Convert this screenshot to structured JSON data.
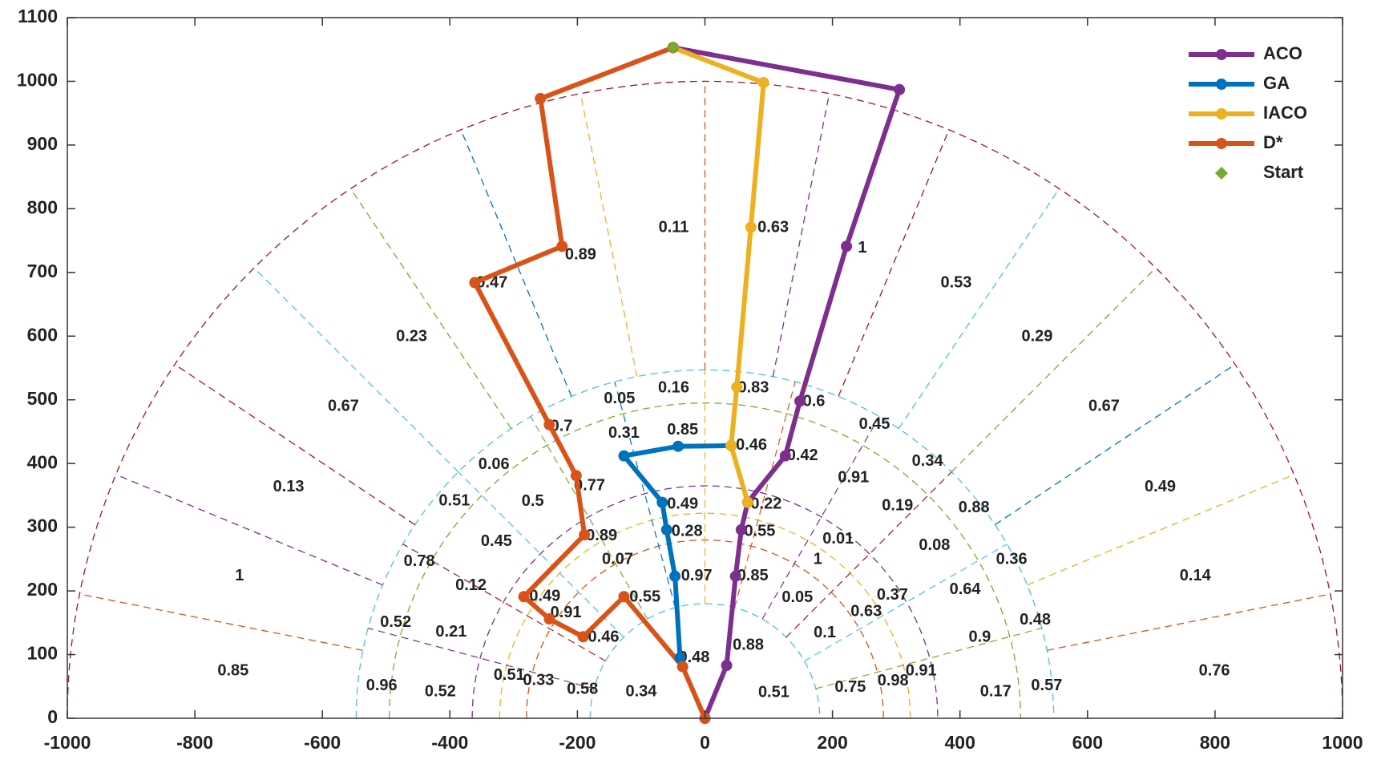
{
  "chart_data": {
    "type": "line",
    "xlim": [
      -1000,
      1000
    ],
    "xticks": [
      -1000,
      -800,
      -600,
      -400,
      -200,
      0,
      200,
      400,
      600,
      800,
      1000
    ],
    "ylim": [
      0,
      1100
    ],
    "yticks": [
      0,
      100,
      200,
      300,
      400,
      500,
      600,
      700,
      800,
      900,
      1000,
      1100
    ],
    "legend": "upper right",
    "series": [
      {
        "name": "ACO",
        "color": "#7e2f8e",
        "marker": "circle",
        "x": [
          -50,
          305,
          222,
          149,
          126,
          67,
          57,
          48,
          34,
          0
        ],
        "y": [
          1053,
          987,
          741,
          498,
          412,
          339,
          296,
          223,
          83,
          0
        ]
      },
      {
        "name": "GA",
        "color": "#0072bd",
        "marker": "circle",
        "x": [
          41,
          -42,
          -127,
          -67,
          -60,
          -47,
          -39
        ],
        "y": [
          428,
          427,
          412,
          339,
          296,
          223,
          95
        ]
      },
      {
        "name": "IACO",
        "color": "#edb120",
        "marker": "circle",
        "x": [
          -50,
          92,
          72,
          50,
          41,
          67
        ],
        "y": [
          1053,
          998,
          771,
          520,
          428,
          339
        ]
      },
      {
        "name": "D*",
        "color": "#d95319",
        "marker": "circle",
        "x": [
          -50,
          -258,
          -224,
          -361,
          -244,
          -202,
          -189,
          -284,
          -244,
          -191,
          -127,
          -35,
          0
        ],
        "y": [
          1053,
          973,
          741,
          684,
          461,
          381,
          288,
          191,
          156,
          128,
          191,
          81,
          0
        ]
      },
      {
        "name": "Start",
        "color": "#77ac30",
        "marker": "diamond",
        "x": [
          -50
        ],
        "y": [
          1053
        ]
      }
    ],
    "annotations": [
      {
        "text": "0.11",
        "x": -49,
        "y": 770
      },
      {
        "text": "0.63",
        "x": 107,
        "y": 770
      },
      {
        "text": "1",
        "x": 247,
        "y": 738
      },
      {
        "text": "0.89",
        "x": -195,
        "y": 727
      },
      {
        "text": "0.47",
        "x": -334,
        "y": 683
      },
      {
        "text": "0.53",
        "x": 394,
        "y": 683
      },
      {
        "text": "0.23",
        "x": -460,
        "y": 599
      },
      {
        "text": "0.29",
        "x": 521,
        "y": 599
      },
      {
        "text": "0.67",
        "x": -567,
        "y": 489
      },
      {
        "text": "0.67",
        "x": 626,
        "y": 489
      },
      {
        "text": "0.13",
        "x": -653,
        "y": 363
      },
      {
        "text": "0.49",
        "x": 714,
        "y": 363
      },
      {
        "text": "1",
        "x": -730,
        "y": 223
      },
      {
        "text": "0.14",
        "x": 769,
        "y": 223
      },
      {
        "text": "0.85",
        "x": -740,
        "y": 74
      },
      {
        "text": "0.76",
        "x": 799,
        "y": 74
      },
      {
        "text": "0.16",
        "x": -49,
        "y": 518
      },
      {
        "text": "0.83",
        "x": 76,
        "y": 518
      },
      {
        "text": "0.6",
        "x": 171,
        "y": 497
      },
      {
        "text": "0.05",
        "x": -134,
        "y": 501
      },
      {
        "text": "0.7",
        "x": -225,
        "y": 458
      },
      {
        "text": "0.85",
        "x": -35,
        "y": 452
      },
      {
        "text": "0.31",
        "x": -127,
        "y": 447
      },
      {
        "text": "0.46",
        "x": 73,
        "y": 428
      },
      {
        "text": "0.45",
        "x": 266,
        "y": 461
      },
      {
        "text": "0.42",
        "x": 153,
        "y": 412
      },
      {
        "text": "0.34",
        "x": 349,
        "y": 403
      },
      {
        "text": "0.06",
        "x": -331,
        "y": 398
      },
      {
        "text": "0.91",
        "x": 233,
        "y": 377
      },
      {
        "text": "0.77",
        "x": -181,
        "y": 365
      },
      {
        "text": "0.51",
        "x": -393,
        "y": 341
      },
      {
        "text": "0.5",
        "x": -270,
        "y": 340
      },
      {
        "text": "0.49",
        "x": -35,
        "y": 336
      },
      {
        "text": "0.22",
        "x": 96,
        "y": 336
      },
      {
        "text": "0.19",
        "x": 302,
        "y": 333
      },
      {
        "text": "0.88",
        "x": 422,
        "y": 330
      },
      {
        "text": "0.89",
        "x": -162,
        "y": 286
      },
      {
        "text": "0.28",
        "x": -28,
        "y": 293
      },
      {
        "text": "0.55",
        "x": 86,
        "y": 293
      },
      {
        "text": "0.01",
        "x": 209,
        "y": 281
      },
      {
        "text": "0.45",
        "x": -327,
        "y": 277
      },
      {
        "text": "0.08",
        "x": 360,
        "y": 271
      },
      {
        "text": "0.78",
        "x": -448,
        "y": 246
      },
      {
        "text": "0.07",
        "x": -137,
        "y": 249
      },
      {
        "text": "1",
        "x": 177,
        "y": 249
      },
      {
        "text": "0.36",
        "x": 481,
        "y": 249
      },
      {
        "text": "0.97",
        "x": -13,
        "y": 223
      },
      {
        "text": "0.85",
        "x": 75,
        "y": 223
      },
      {
        "text": "0.12",
        "x": -367,
        "y": 208
      },
      {
        "text": "0.64",
        "x": 408,
        "y": 202
      },
      {
        "text": "0.49",
        "x": -251,
        "y": 191
      },
      {
        "text": "0.55",
        "x": -94,
        "y": 190
      },
      {
        "text": "0.05",
        "x": 145,
        "y": 189
      },
      {
        "text": "0.37",
        "x": 294,
        "y": 193
      },
      {
        "text": "0.91",
        "x": -218,
        "y": 165
      },
      {
        "text": "0.63",
        "x": 253,
        "y": 167
      },
      {
        "text": "0.52",
        "x": -485,
        "y": 150
      },
      {
        "text": "0.48",
        "x": 518,
        "y": 154
      },
      {
        "text": "0.21",
        "x": -398,
        "y": 135
      },
      {
        "text": "0.1",
        "x": 188,
        "y": 134
      },
      {
        "text": "0.46",
        "x": -159,
        "y": 127
      },
      {
        "text": "0.9",
        "x": 431,
        "y": 127
      },
      {
        "text": "0.88",
        "x": 68,
        "y": 114
      },
      {
        "text": "0.48",
        "x": -17,
        "y": 95
      },
      {
        "text": "0.91",
        "x": 339,
        "y": 74
      },
      {
        "text": "0.51",
        "x": -307,
        "y": 67
      },
      {
        "text": "0.33",
        "x": -261,
        "y": 59
      },
      {
        "text": "0.98",
        "x": 295,
        "y": 58
      },
      {
        "text": "0.96",
        "x": -507,
        "y": 51
      },
      {
        "text": "0.58",
        "x": -192,
        "y": 45
      },
      {
        "text": "0.75",
        "x": 228,
        "y": 48
      },
      {
        "text": "0.57",
        "x": 536,
        "y": 51
      },
      {
        "text": "0.52",
        "x": -415,
        "y": 41
      },
      {
        "text": "0.34",
        "x": -100,
        "y": 41
      },
      {
        "text": "0.51",
        "x": 108,
        "y": 40
      },
      {
        "text": "0.17",
        "x": 456,
        "y": 41
      }
    ]
  }
}
